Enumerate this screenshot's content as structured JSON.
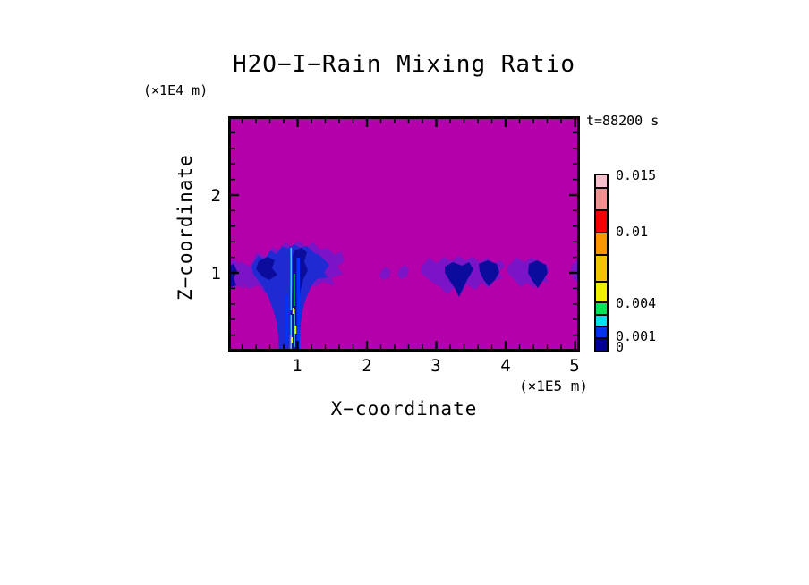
{
  "chart_data": {
    "type": "heatmap",
    "title": "H2O−I−Rain Mixing Ratio",
    "xlabel": "X−coordinate",
    "ylabel": "Z−coordinate",
    "x_axis_unit": "(×1E5 m)",
    "y_axis_unit": "(×1E4 m)",
    "time_annotation": "t=88200 s",
    "x_ticks": [
      "1",
      "2",
      "3",
      "4",
      "5"
    ],
    "y_ticks": [
      "2",
      "1"
    ],
    "xlim": [
      0,
      5.1
    ],
    "ylim": [
      0,
      3.0
    ],
    "minor_tick_step": 0.2,
    "grid": "off",
    "legend_position": "right-colorbar",
    "colors": {
      "plot_background": "#b300ab",
      "fringe_purple": "#7a14c6",
      "storm_blue": "#1f2ad2",
      "core_navy": "#0c0c9c",
      "streak_cyan": "#00e4ff",
      "streak_green": "#00d050",
      "streak_yellow": "#e8f000",
      "streak_blue": "#0034ff",
      "frame": "#000000",
      "text": "#000000"
    },
    "colorbar": {
      "labels": [
        "0.015",
        "0.01",
        "0.004",
        "0.001",
        "0"
      ],
      "labeled_levels": [
        0,
        0.001,
        0.004,
        0.01,
        0.015
      ],
      "segments_top_to_bottom": [
        "#f8c0cc",
        "#f09090",
        "#f40000",
        "#fa9600",
        "#f2c300",
        "#f0f000",
        "#00e652",
        "#00e0f0",
        "#0030f0",
        "#000096"
      ]
    },
    "features": [
      {
        "name": "main-rain-shaft",
        "x_1e5m": [
          0.2,
          1.6
        ],
        "z_1e4m": [
          0.0,
          1.35
        ],
        "note": "anvil-topped rain shaft reaching the surface near x=1 with high mixing-ratio streaks (cyan/green/yellow) in its core"
      },
      {
        "name": "small-cells",
        "x_1e5m": [
          2.2,
          2.6
        ],
        "z_1e4m": [
          0.9,
          1.1
        ],
        "note": "faint isolated specks"
      },
      {
        "name": "cell-cluster-west",
        "x_1e5m": [
          2.8,
          4.0
        ],
        "z_1e4m": [
          0.7,
          1.25
        ],
        "note": "wispy band with two dark descending cores"
      },
      {
        "name": "cell-cluster-east",
        "x_1e5m": [
          4.1,
          4.7
        ],
        "z_1e4m": [
          0.8,
          1.25
        ],
        "note": "wispy band with one dark core"
      },
      {
        "name": "edge-cell",
        "x_1e5m": [
          4.95,
          5.1
        ],
        "z_1e4m": [
          0.85,
          1.15
        ],
        "note": "sliver at right boundary"
      }
    ]
  }
}
